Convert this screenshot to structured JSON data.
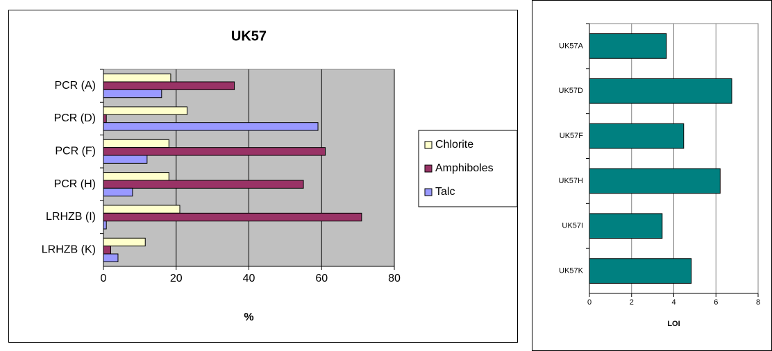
{
  "chart_data": [
    {
      "type": "bar",
      "orientation": "horizontal",
      "title": "UK57",
      "x_label": "%",
      "categories": [
        "PCR (A)",
        "PCR (D)",
        "PCR (F)",
        "PCR (H)",
        "LRHZB (I)",
        "LRHZB (K)"
      ],
      "series": [
        {
          "name": "Chlorite",
          "color": "#ffffcc",
          "values": [
            18.5,
            23,
            18,
            18,
            21,
            11.5
          ]
        },
        {
          "name": "Amphiboles",
          "color": "#993366",
          "values": [
            36,
            0.8,
            61,
            55,
            71,
            2
          ]
        },
        {
          "name": "Talc",
          "color": "#9999ff",
          "values": [
            16,
            59,
            12,
            8,
            0.8,
            4
          ]
        }
      ],
      "xlim": [
        0,
        80
      ],
      "xticks": [
        0,
        20,
        40,
        60,
        80
      ],
      "grid": true,
      "plot_background": "#c0c0c0",
      "legend": "right"
    },
    {
      "type": "bar",
      "orientation": "horizontal",
      "x_label": "LOI",
      "categories": [
        "UK57A",
        "UK57D",
        "UK57F",
        "UK57H",
        "UK57I",
        "UK57K"
      ],
      "values": [
        3.65,
        6.75,
        4.47,
        6.2,
        3.45,
        4.83
      ],
      "color": "#008080",
      "xlim": [
        0,
        8
      ],
      "xticks": [
        0,
        2,
        4,
        6,
        8
      ],
      "grid": true,
      "plot_background": "#ffffff"
    }
  ]
}
